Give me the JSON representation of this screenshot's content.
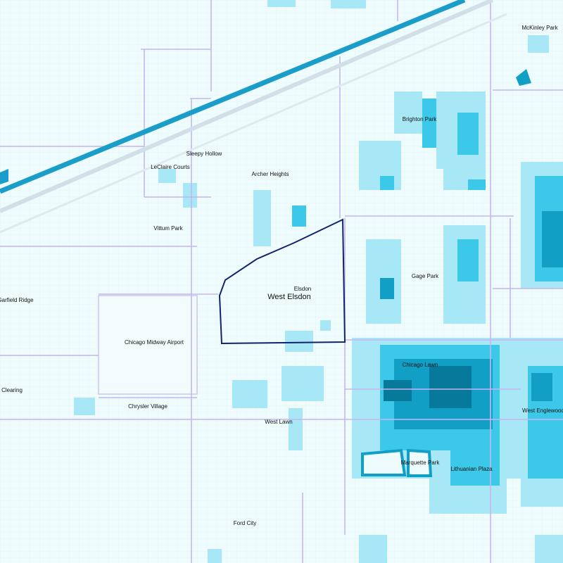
{
  "labels": {
    "mckinley_park": "McKinley Park",
    "brighton_park": "Brighton Park",
    "sleepy_hollow": "Sleepy Hollow",
    "leclaire_courts": "LeClaire Courts",
    "archer_heights": "Archer Heights",
    "vittum_park": "Vittum Park",
    "gage_park": "Gage Park",
    "elsdon": "Elsdon",
    "west_elsdon": "West Elsdon",
    "garfield_ridge": "Garfield Ridge",
    "midway": "Chicago Midway Airport",
    "chicago_lawn": "Chicago Lawn",
    "clearing": "Clearing",
    "chrysler_village": "Chrysler Village",
    "west_englewood": "West Englewood",
    "west_lawn": "West Lawn",
    "marquette_park": "Marquette Park",
    "lithuanian_plaza": "Lithuanian Plaza",
    "ford_city": "Ford City"
  }
}
